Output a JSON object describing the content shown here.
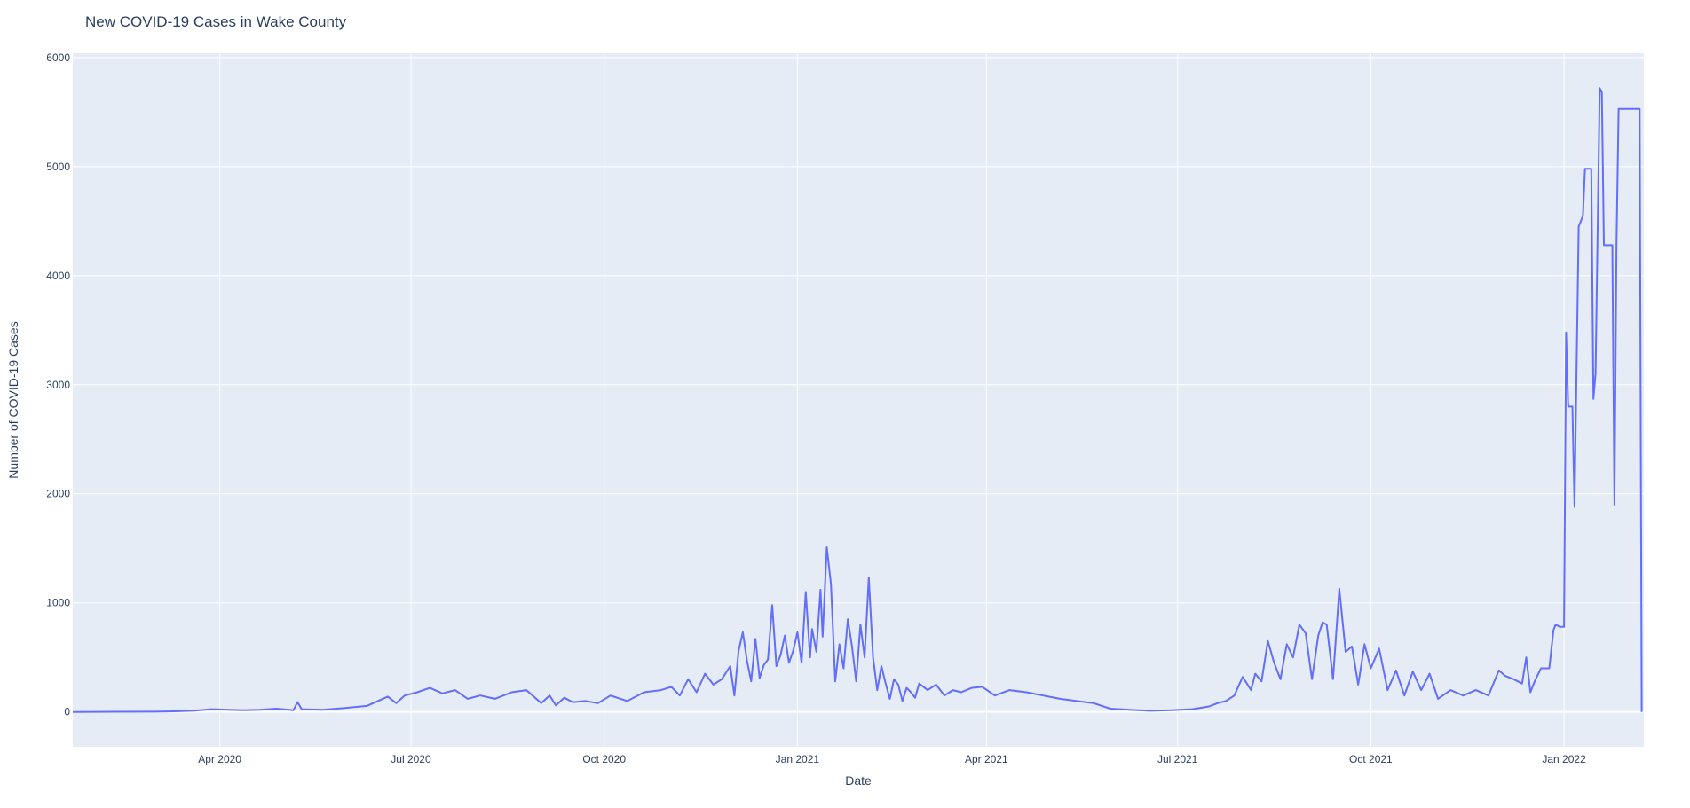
{
  "chart_data": {
    "type": "line",
    "title": "New COVID-19 Cases in Wake County",
    "xlabel": "Date",
    "ylabel": "Number of COVID-19 Cases",
    "xlim": [
      "2020-01-22",
      "2022-02-08"
    ],
    "ylim": [
      -320,
      6040
    ],
    "grid": true,
    "legend": "none",
    "colors": {
      "line": "#636efa",
      "plot_bg": "#e5ecf6",
      "grid": "#ffffff",
      "text": "#2a3f5f"
    },
    "x_ticks": [
      {
        "date": "2020-04-01",
        "label": "Apr 2020"
      },
      {
        "date": "2020-07-01",
        "label": "Jul 2020"
      },
      {
        "date": "2020-10-01",
        "label": "Oct 2020"
      },
      {
        "date": "2021-01-01",
        "label": "Jan 2021"
      },
      {
        "date": "2021-04-01",
        "label": "Apr 2021"
      },
      {
        "date": "2021-07-01",
        "label": "Jul 2021"
      },
      {
        "date": "2021-10-01",
        "label": "Oct 2021"
      },
      {
        "date": "2022-01-01",
        "label": "Jan 2022"
      }
    ],
    "y_ticks": [
      {
        "value": 0,
        "label": "0"
      },
      {
        "value": 1000,
        "label": "1000"
      },
      {
        "value": 2000,
        "label": "2000"
      },
      {
        "value": 3000,
        "label": "3000"
      },
      {
        "value": 4000,
        "label": "4000"
      },
      {
        "value": 5000,
        "label": "5000"
      },
      {
        "value": 6000,
        "label": "6000"
      }
    ],
    "series": [
      {
        "x": [
          "2020-01-22",
          "2020-03-01",
          "2020-03-10",
          "2020-03-20",
          "2020-03-28",
          "2020-04-05",
          "2020-04-12",
          "2020-04-20",
          "2020-04-28",
          "2020-05-06",
          "2020-05-08",
          "2020-05-10",
          "2020-05-20",
          "2020-05-30",
          "2020-06-10",
          "2020-06-20",
          "2020-06-24",
          "2020-06-28",
          "2020-07-04",
          "2020-07-10",
          "2020-07-16",
          "2020-07-22",
          "2020-07-28",
          "2020-08-03",
          "2020-08-10",
          "2020-08-18",
          "2020-08-25",
          "2020-09-01",
          "2020-09-05",
          "2020-09-08",
          "2020-09-12",
          "2020-09-16",
          "2020-09-22",
          "2020-09-28",
          "2020-10-04",
          "2020-10-12",
          "2020-10-20",
          "2020-10-28",
          "2020-11-02",
          "2020-11-06",
          "2020-11-10",
          "2020-11-14",
          "2020-11-18",
          "2020-11-22",
          "2020-11-26",
          "2020-11-30",
          "2020-12-02",
          "2020-12-04",
          "2020-12-06",
          "2020-12-08",
          "2020-12-10",
          "2020-12-12",
          "2020-12-14",
          "2020-12-16",
          "2020-12-18",
          "2020-12-20",
          "2020-12-22",
          "2020-12-24",
          "2020-12-26",
          "2020-12-28",
          "2020-12-30",
          "2021-01-01",
          "2021-01-03",
          "2021-01-05",
          "2021-01-07",
          "2021-01-08",
          "2021-01-10",
          "2021-01-12",
          "2021-01-13",
          "2021-01-15",
          "2021-01-17",
          "2021-01-19",
          "2021-01-21",
          "2021-01-23",
          "2021-01-25",
          "2021-01-27",
          "2021-01-29",
          "2021-01-31",
          "2021-02-02",
          "2021-02-04",
          "2021-02-06",
          "2021-02-08",
          "2021-02-10",
          "2021-02-12",
          "2021-02-14",
          "2021-02-16",
          "2021-02-18",
          "2021-02-20",
          "2021-02-22",
          "2021-02-24",
          "2021-02-26",
          "2021-02-28",
          "2021-03-04",
          "2021-03-08",
          "2021-03-12",
          "2021-03-16",
          "2021-03-20",
          "2021-03-25",
          "2021-03-30",
          "2021-04-05",
          "2021-04-12",
          "2021-04-20",
          "2021-04-28",
          "2021-05-06",
          "2021-05-14",
          "2021-05-22",
          "2021-05-30",
          "2021-06-08",
          "2021-06-18",
          "2021-06-28",
          "2021-07-08",
          "2021-07-16",
          "2021-07-20",
          "2021-07-24",
          "2021-07-28",
          "2021-08-01",
          "2021-08-05",
          "2021-08-07",
          "2021-08-10",
          "2021-08-13",
          "2021-08-16",
          "2021-08-19",
          "2021-08-22",
          "2021-08-25",
          "2021-08-28",
          "2021-08-31",
          "2021-09-03",
          "2021-09-06",
          "2021-09-08",
          "2021-09-10",
          "2021-09-13",
          "2021-09-16",
          "2021-09-19",
          "2021-09-22",
          "2021-09-25",
          "2021-09-28",
          "2021-10-01",
          "2021-10-05",
          "2021-10-09",
          "2021-10-13",
          "2021-10-17",
          "2021-10-21",
          "2021-10-25",
          "2021-10-29",
          "2021-11-02",
          "2021-11-08",
          "2021-11-14",
          "2021-11-20",
          "2021-11-26",
          "2021-12-01",
          "2021-12-04",
          "2021-12-08",
          "2021-12-12",
          "2021-12-14",
          "2021-12-16",
          "2021-12-18",
          "2021-12-21",
          "2021-12-25",
          "2021-12-27",
          "2021-12-28",
          "2021-12-30",
          "2022-01-01",
          "2022-01-02",
          "2022-01-03",
          "2022-01-04",
          "2022-01-05",
          "2022-01-06",
          "2022-01-08",
          "2022-01-10",
          "2022-01-11",
          "2022-01-12",
          "2022-01-13",
          "2022-01-14",
          "2022-01-15",
          "2022-01-16",
          "2022-01-18",
          "2022-01-19",
          "2022-01-20",
          "2022-01-21",
          "2022-01-22",
          "2022-01-23",
          "2022-01-24",
          "2022-01-25",
          "2022-01-26",
          "2022-01-27",
          "2022-01-28",
          "2022-01-29",
          "2022-01-31",
          "2022-02-01",
          "2022-02-02",
          "2022-02-03",
          "2022-02-04",
          "2022-02-05",
          "2022-02-06",
          "2022-02-07"
        ],
        "y": [
          0,
          2,
          5,
          12,
          25,
          20,
          15,
          20,
          30,
          15,
          90,
          25,
          20,
          35,
          55,
          140,
          80,
          150,
          180,
          220,
          170,
          200,
          120,
          150,
          120,
          180,
          200,
          80,
          150,
          60,
          130,
          90,
          100,
          80,
          150,
          100,
          180,
          200,
          230,
          150,
          300,
          180,
          350,
          250,
          300,
          420,
          150,
          560,
          730,
          470,
          280,
          670,
          310,
          430,
          480,
          980,
          420,
          520,
          700,
          450,
          560,
          730,
          450,
          1100,
          500,
          760,
          550,
          1120,
          690,
          1510,
          1170,
          280,
          620,
          400,
          850,
          600,
          280,
          800,
          500,
          1230,
          500,
          200,
          420,
          260,
          120,
          300,
          250,
          100,
          220,
          180,
          130,
          260,
          200,
          250,
          150,
          200,
          180,
          220,
          230,
          150,
          200,
          180,
          150,
          120,
          100,
          80,
          30,
          20,
          10,
          15,
          25,
          50,
          80,
          100,
          150,
          320,
          200,
          350,
          280,
          650,
          450,
          300,
          620,
          500,
          800,
          720,
          300,
          700,
          820,
          800,
          300,
          1130,
          550,
          600,
          250,
          620,
          400,
          580,
          200,
          380,
          150,
          370,
          200,
          350,
          120,
          200,
          150,
          200,
          150,
          380,
          330,
          300,
          260,
          500,
          180,
          280,
          400,
          400,
          750,
          800,
          780,
          780,
          3480,
          2800,
          2800,
          2800,
          1880,
          4450,
          4550,
          4980,
          4980,
          4980,
          4980,
          2870,
          3100,
          5720,
          5680,
          4280,
          4280,
          4280,
          4280,
          4280,
          1900,
          4280,
          5530,
          5530,
          5530,
          5530,
          5530,
          5530,
          5530,
          5530,
          5530,
          5530,
          0
        ]
      }
    ]
  }
}
